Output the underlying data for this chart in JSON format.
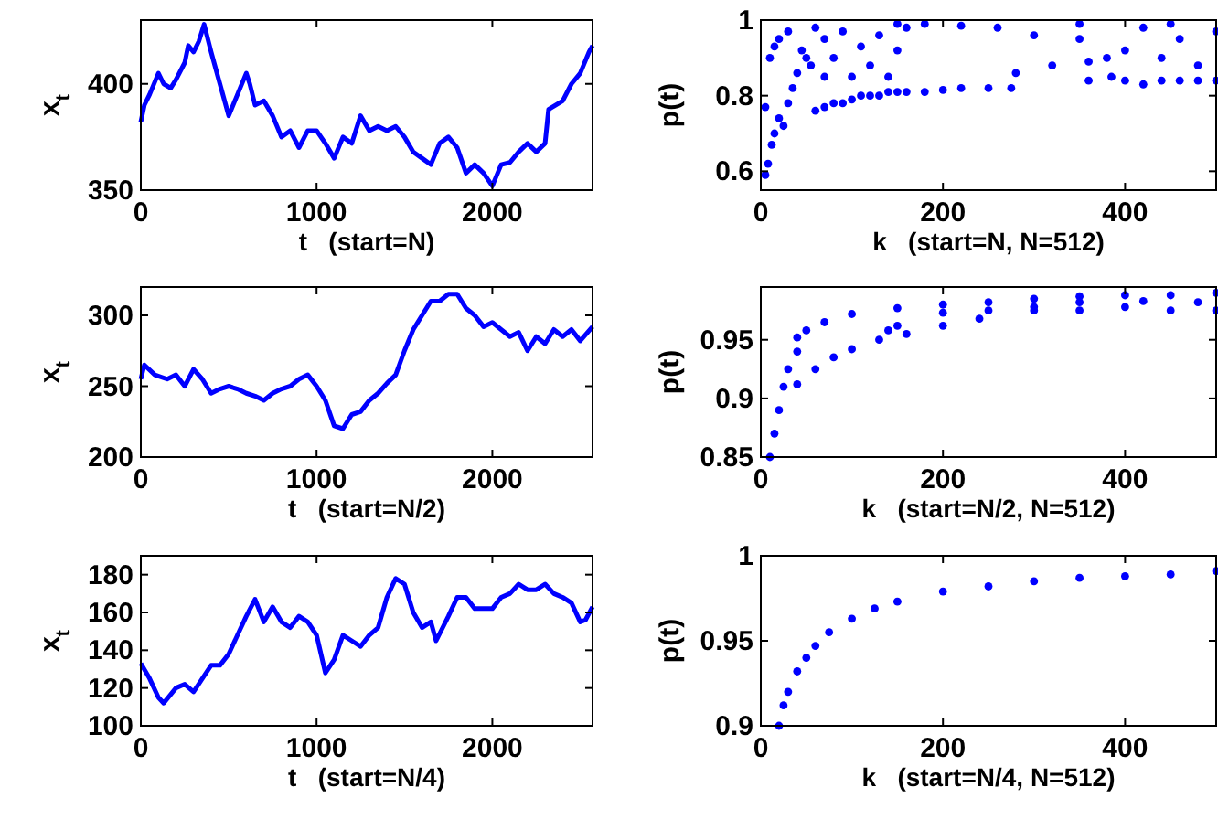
{
  "chart_data": [
    {
      "type": "line",
      "xlabel": "t   (start=N)",
      "ylabel": "x$_{t}$",
      "xlim": [
        0,
        2570
      ],
      "ylim": [
        350,
        430
      ],
      "xticks": [
        0,
        1000,
        2000
      ],
      "yticks": [
        350,
        400
      ],
      "line_style": "solid",
      "series": [
        {
          "color": "#0000ff",
          "x": [
            0,
            20,
            50,
            100,
            130,
            170,
            200,
            250,
            270,
            300,
            330,
            360,
            400,
            450,
            500,
            550,
            600,
            620,
            650,
            700,
            750,
            800,
            850,
            900,
            950,
            1000,
            1050,
            1100,
            1150,
            1200,
            1250,
            1300,
            1350,
            1400,
            1450,
            1500,
            1550,
            1600,
            1650,
            1700,
            1750,
            1800,
            1850,
            1900,
            1950,
            2000,
            2050,
            2100,
            2150,
            2200,
            2250,
            2300,
            2320,
            2400,
            2450,
            2500,
            2550,
            2570
          ],
          "values": [
            382,
            390,
            395,
            405,
            400,
            398,
            402,
            410,
            418,
            415,
            420,
            428,
            415,
            400,
            385,
            395,
            405,
            400,
            390,
            392,
            385,
            375,
            378,
            370,
            378,
            378,
            372,
            365,
            375,
            372,
            385,
            378,
            380,
            378,
            380,
            375,
            368,
            365,
            362,
            372,
            375,
            370,
            358,
            362,
            358,
            352,
            362,
            363,
            368,
            372,
            368,
            372,
            388,
            392,
            400,
            405,
            415,
            418
          ]
        }
      ]
    },
    {
      "type": "scatter",
      "xlabel": "k   (start=N, N=512)",
      "ylabel": "p(t)",
      "xlim": [
        0,
        500
      ],
      "ylim": [
        0.55,
        1
      ],
      "xticks": [
        0,
        200,
        400
      ],
      "yticks": [
        0.6,
        0.8,
        1
      ],
      "marker": "circle",
      "series": [
        {
          "color": "#0000ff",
          "x": [
            5,
            8,
            12,
            15,
            20,
            5,
            10,
            15,
            20,
            30,
            25,
            30,
            35,
            40,
            45,
            50,
            55,
            60,
            60,
            70,
            70,
            70,
            80,
            80,
            90,
            90,
            100,
            100,
            110,
            110,
            120,
            120,
            130,
            130,
            140,
            140,
            150,
            150,
            160,
            160,
            180,
            200,
            220,
            250,
            275,
            180,
            220,
            260,
            300,
            350,
            280,
            320,
            360,
            380,
            385,
            360,
            400,
            400,
            420,
            420,
            440,
            440,
            460,
            460,
            480,
            480,
            500,
            500,
            150,
            350,
            450
          ],
          "values": [
            0.59,
            0.62,
            0.67,
            0.7,
            0.74,
            0.77,
            0.9,
            0.93,
            0.95,
            0.97,
            0.72,
            0.78,
            0.82,
            0.86,
            0.92,
            0.9,
            0.88,
            0.76,
            0.98,
            0.77,
            0.85,
            0.95,
            0.78,
            0.9,
            0.78,
            0.97,
            0.79,
            0.85,
            0.8,
            0.93,
            0.8,
            0.88,
            0.8,
            0.96,
            0.81,
            0.85,
            0.81,
            0.92,
            0.81,
            0.98,
            0.81,
            0.815,
            0.82,
            0.82,
            0.82,
            0.99,
            0.985,
            0.98,
            0.96,
            0.95,
            0.86,
            0.88,
            0.89,
            0.9,
            0.85,
            0.84,
            0.84,
            0.92,
            0.83,
            0.98,
            0.84,
            0.9,
            0.84,
            0.95,
            0.84,
            0.88,
            0.84,
            0.97,
            0.99,
            0.99,
            0.99
          ]
        }
      ]
    },
    {
      "type": "line",
      "xlabel": "t   (start=N/2)",
      "ylabel": "x$_{t}$",
      "xlim": [
        0,
        2570
      ],
      "ylim": [
        200,
        320
      ],
      "xticks": [
        0,
        1000,
        2000
      ],
      "yticks": [
        200,
        250,
        300
      ],
      "line_style": "solid",
      "series": [
        {
          "color": "#0000ff",
          "x": [
            0,
            20,
            80,
            150,
            200,
            250,
            300,
            350,
            400,
            450,
            500,
            550,
            600,
            650,
            700,
            750,
            800,
            850,
            900,
            950,
            1000,
            1050,
            1100,
            1150,
            1200,
            1250,
            1300,
            1350,
            1400,
            1450,
            1500,
            1550,
            1600,
            1650,
            1700,
            1750,
            1800,
            1850,
            1900,
            1950,
            2000,
            2050,
            2100,
            2150,
            2200,
            2250,
            2300,
            2350,
            2400,
            2450,
            2500,
            2570
          ],
          "values": [
            255,
            265,
            258,
            255,
            258,
            250,
            262,
            255,
            245,
            248,
            250,
            248,
            245,
            243,
            240,
            245,
            248,
            250,
            255,
            258,
            250,
            240,
            222,
            220,
            230,
            232,
            240,
            245,
            252,
            258,
            275,
            290,
            300,
            310,
            310,
            315,
            315,
            305,
            300,
            292,
            295,
            290,
            285,
            288,
            275,
            285,
            280,
            290,
            285,
            290,
            282,
            292
          ]
        }
      ]
    },
    {
      "type": "scatter",
      "xlabel": "k   (start=N/2, N=512)",
      "ylabel": "p(t)",
      "xlim": [
        0,
        500
      ],
      "ylim": [
        0.85,
        0.995
      ],
      "xticks": [
        0,
        200,
        400
      ],
      "yticks": [
        0.85,
        0.9,
        0.95
      ],
      "marker": "circle",
      "series": [
        {
          "color": "#0000ff",
          "x": [
            10,
            15,
            20,
            25,
            30,
            40,
            40,
            50,
            70,
            100,
            150,
            200,
            40,
            60,
            80,
            100,
            130,
            140,
            160,
            200,
            240,
            150,
            200,
            250,
            300,
            350,
            400,
            450,
            500,
            250,
            300,
            350,
            400,
            450,
            500,
            300,
            350,
            420,
            480
          ],
          "values": [
            0.85,
            0.87,
            0.89,
            0.91,
            0.925,
            0.94,
            0.952,
            0.958,
            0.965,
            0.972,
            0.977,
            0.98,
            0.912,
            0.925,
            0.935,
            0.942,
            0.95,
            0.958,
            0.955,
            0.962,
            0.968,
            0.962,
            0.973,
            0.975,
            0.975,
            0.975,
            0.978,
            0.975,
            0.975,
            0.982,
            0.985,
            0.987,
            0.988,
            0.988,
            0.99,
            0.978,
            0.982,
            0.983,
            0.982
          ]
        }
      ]
    },
    {
      "type": "line",
      "xlabel": "t   (start=N/4)",
      "ylabel": "x$_{t}$",
      "xlim": [
        0,
        2570
      ],
      "ylim": [
        100,
        190
      ],
      "xticks": [
        0,
        1000,
        2000
      ],
      "yticks": [
        100,
        120,
        140,
        160,
        180
      ],
      "line_style": "solid",
      "series": [
        {
          "color": "#0000ff",
          "x": [
            0,
            50,
            100,
            130,
            200,
            250,
            300,
            350,
            400,
            450,
            500,
            550,
            600,
            650,
            700,
            750,
            800,
            850,
            900,
            950,
            1000,
            1050,
            1100,
            1150,
            1200,
            1250,
            1300,
            1350,
            1400,
            1450,
            1500,
            1550,
            1600,
            1650,
            1680,
            1750,
            1800,
            1850,
            1900,
            2000,
            2050,
            2100,
            2150,
            2200,
            2250,
            2300,
            2350,
            2400,
            2450,
            2500,
            2530,
            2570
          ],
          "values": [
            133,
            125,
            115,
            112,
            120,
            122,
            118,
            125,
            132,
            132,
            138,
            148,
            158,
            167,
            155,
            163,
            155,
            152,
            158,
            155,
            148,
            128,
            135,
            148,
            145,
            142,
            148,
            152,
            168,
            178,
            175,
            160,
            152,
            155,
            145,
            158,
            168,
            168,
            162,
            162,
            168,
            170,
            175,
            172,
            172,
            175,
            170,
            168,
            165,
            155,
            156,
            163
          ]
        }
      ]
    },
    {
      "type": "scatter",
      "xlabel": "k   (start=N/4, N=512)",
      "ylabel": "p(t)",
      "xlim": [
        0,
        500
      ],
      "ylim": [
        0.9,
        1
      ],
      "xticks": [
        0,
        200,
        400
      ],
      "yticks": [
        0.9,
        0.95,
        1
      ],
      "marker": "circle",
      "series": [
        {
          "color": "#0000ff",
          "x": [
            20,
            25,
            30,
            40,
            50,
            60,
            75,
            100,
            125,
            150,
            200,
            250,
            300,
            350,
            400,
            450,
            500
          ],
          "values": [
            0.9,
            0.912,
            0.92,
            0.932,
            0.94,
            0.947,
            0.955,
            0.963,
            0.969,
            0.973,
            0.979,
            0.982,
            0.985,
            0.987,
            0.988,
            0.989,
            0.991
          ]
        }
      ]
    }
  ]
}
